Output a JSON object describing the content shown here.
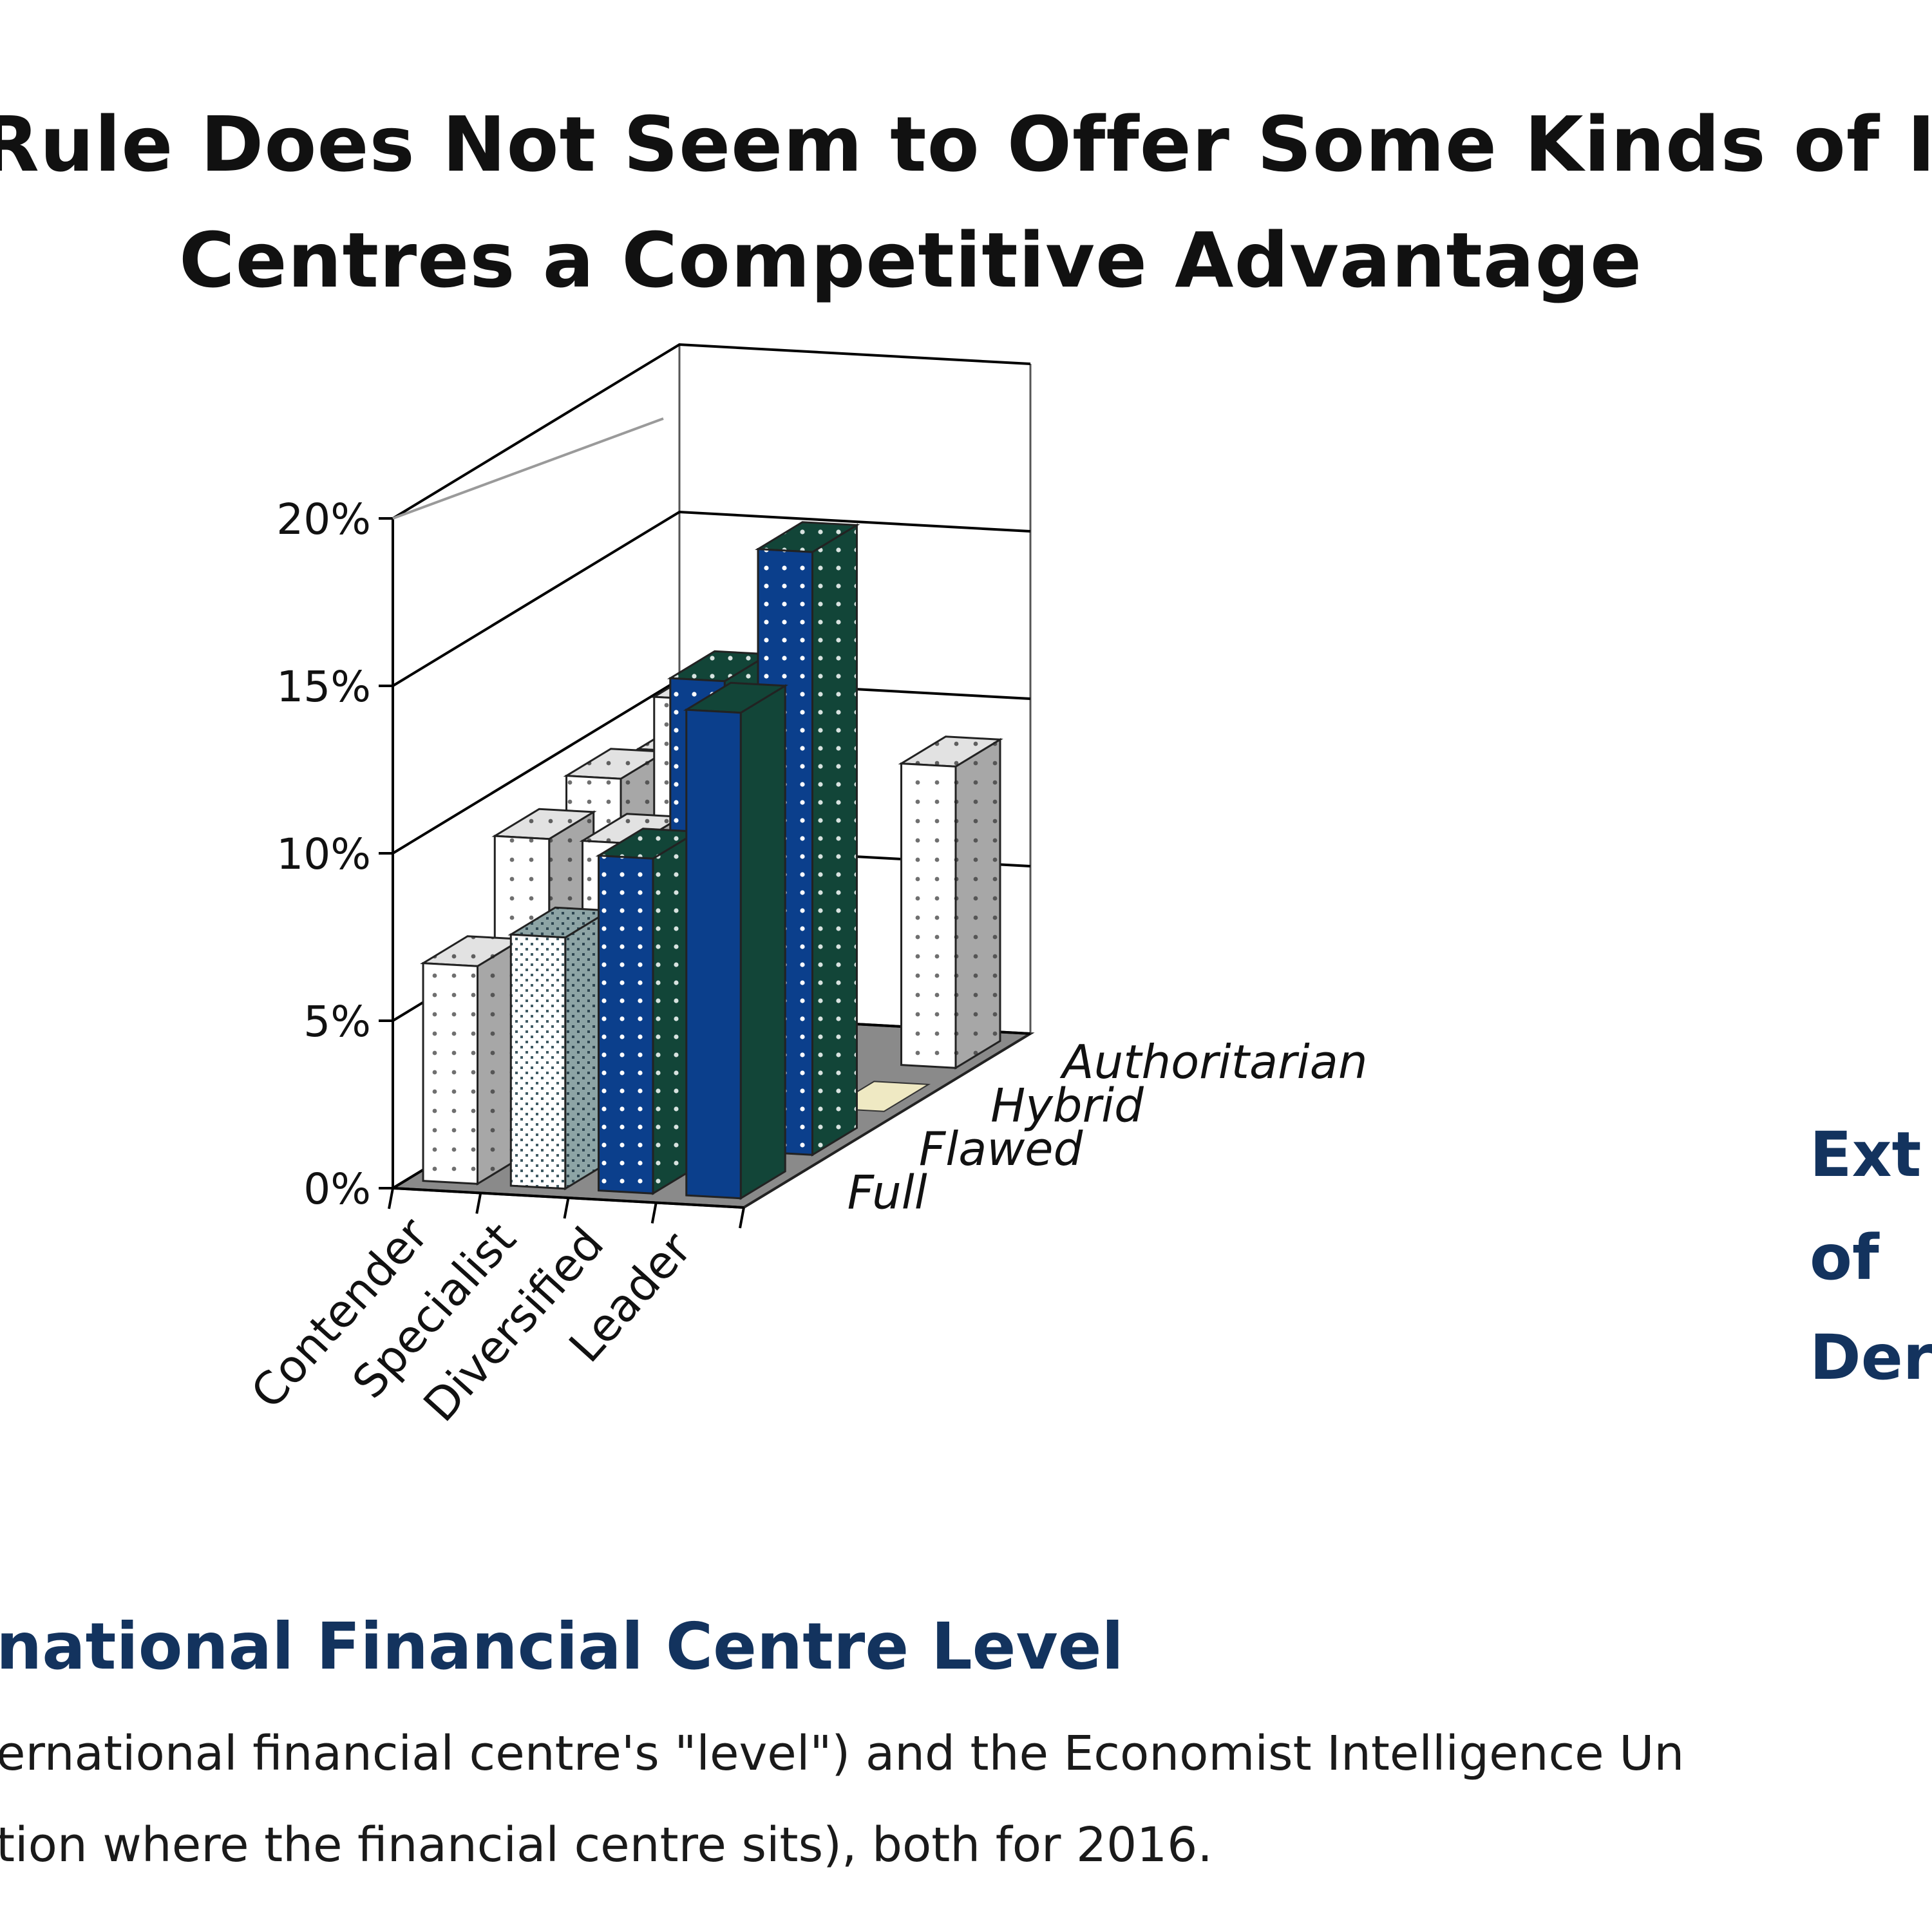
{
  "header": {
    "title_line_1": "Rule Does Not Seem to Offer Some Kinds of In",
    "title_line_2": "Centres a Competitive Advantage"
  },
  "footer": {
    "xaxis_title": "national Financial Centre Level",
    "side_label_lines": [
      "Ext",
      "of",
      "Der"
    ],
    "caption_line_1": "ernational financial centre's \"level\") and the Economist Intelligence Un",
    "caption_line_2": "tion where the financial centre sits), both for 2016."
  },
  "chart_data": {
    "type": "bar",
    "variant": "3d-clustered",
    "categories": [
      "Contender",
      "Specialist",
      "Diversified",
      "Leader"
    ],
    "depth_categories": [
      "Full",
      "Flawed",
      "Hybrid",
      "Authoritarian"
    ],
    "ytick_labels": [
      "0%",
      "5%",
      "10%",
      "15%",
      "20%"
    ],
    "ylim": [
      0,
      20
    ],
    "grid": true,
    "series": [
      {
        "name": "Full",
        "values": [
          6.5,
          7.5,
          10.0,
          14.5
        ]
      },
      {
        "name": "Flawed",
        "values": [
          9.0,
          9.0,
          14.0,
          18.0
        ]
      },
      {
        "name": "Hybrid",
        "values": [
          9.5,
          12.0,
          0,
          0
        ]
      },
      {
        "name": "Authoritarian",
        "values": [
          9.0,
          9.0,
          0,
          9.0
        ]
      }
    ],
    "colors": {
      "white_face": "#ffffff",
      "white_top": "#dcdcdc",
      "white_side": "#a9a9a9",
      "blue_face": "#0b3f8c",
      "green_side": "#124538",
      "floor": "#8a8a8a",
      "small_wedge": "#efe9c3"
    }
  }
}
